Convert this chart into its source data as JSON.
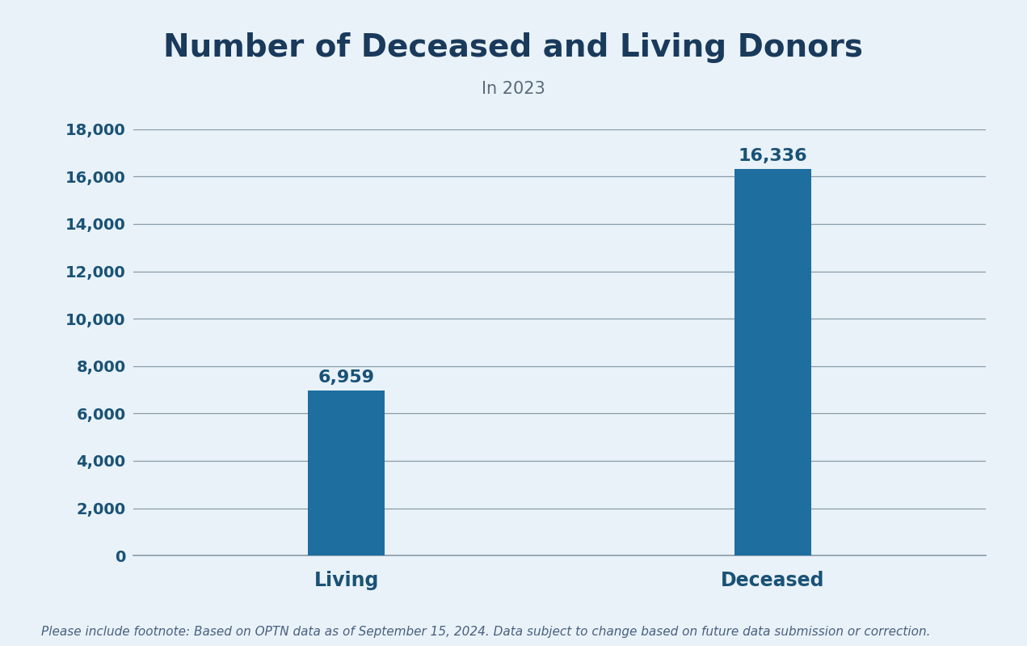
{
  "title": "Number of Deceased and Living Donors",
  "subtitle": "In 2023",
  "categories": [
    "Living",
    "Deceased"
  ],
  "values": [
    6959,
    16336
  ],
  "bar_color": "#1e6e9f",
  "background_color": "#e8f2f8",
  "title_color": "#1a3a5c",
  "subtitle_color": "#5a6a7a",
  "label_color": "#1a5276",
  "value_label_color": "#1a5276",
  "grid_color": "#8a9baa",
  "axis_color": "#8a9baa",
  "ylim": [
    0,
    18000
  ],
  "yticks": [
    0,
    2000,
    4000,
    6000,
    8000,
    10000,
    12000,
    14000,
    16000,
    18000
  ],
  "title_fontsize": 28,
  "subtitle_fontsize": 15,
  "xlabel_fontsize": 17,
  "ylabel_fontsize": 14,
  "value_label_fontsize": 16,
  "footnote": "Please include footnote: Based on OPTN data as of September 15, 2024. Data subject to change based on future data submission or correction.",
  "footnote_fontsize": 11,
  "footnote_color": "#4a6080",
  "bar_width": 0.18,
  "x_positions": [
    1,
    2
  ],
  "xlim": [
    0.5,
    2.5
  ]
}
